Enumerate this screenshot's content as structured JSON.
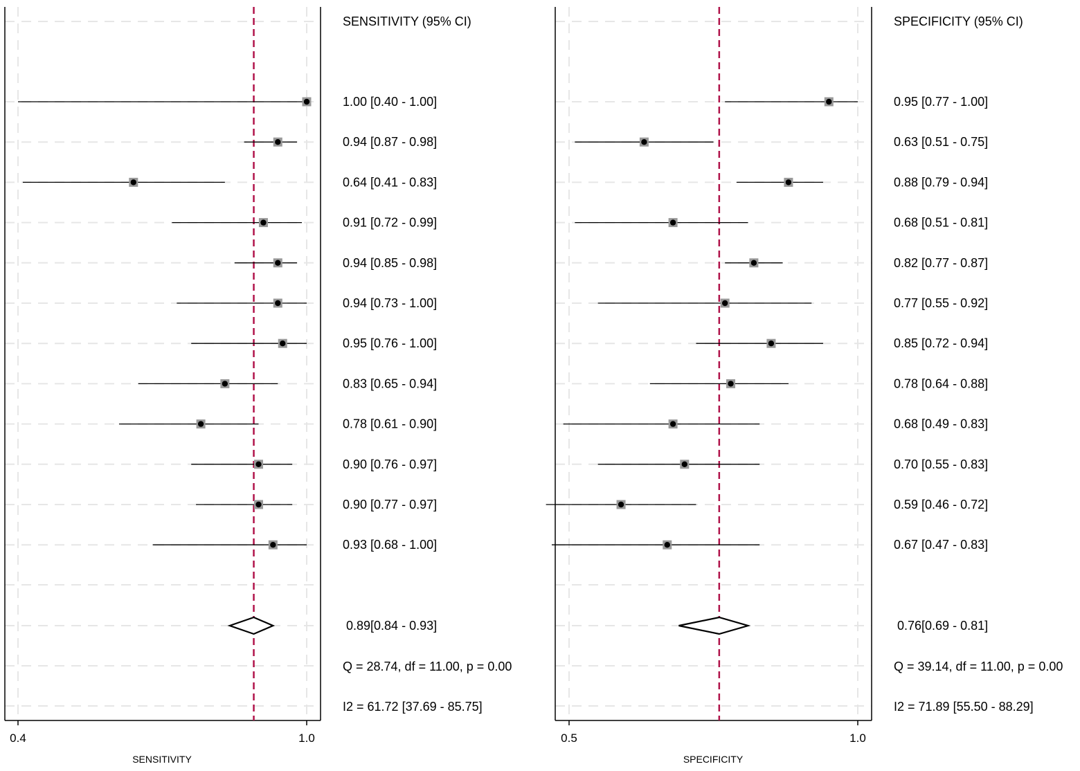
{
  "chart_data": [
    {
      "type": "forest",
      "title": "SENSITIVITY (95% CI)",
      "xlabel": "SENSITIVITY",
      "xlim": [
        0.4,
        1.0
      ],
      "xticks": [
        "0.4",
        "1.0"
      ],
      "pooled_reference": 0.89,
      "studies": [
        {
          "estimate": 1.0,
          "lower": 0.4,
          "upper": 1.0,
          "label": "1.00 [0.40 - 1.00]"
        },
        {
          "estimate": 0.94,
          "lower": 0.87,
          "upper": 0.98,
          "label": "0.94 [0.87 - 0.98]"
        },
        {
          "estimate": 0.64,
          "lower": 0.41,
          "upper": 0.83,
          "label": "0.64 [0.41 - 0.83]"
        },
        {
          "estimate": 0.91,
          "lower": 0.72,
          "upper": 0.99,
          "label": "0.91 [0.72 - 0.99]"
        },
        {
          "estimate": 0.94,
          "lower": 0.85,
          "upper": 0.98,
          "label": "0.94 [0.85 - 0.98]"
        },
        {
          "estimate": 0.94,
          "lower": 0.73,
          "upper": 1.0,
          "label": "0.94 [0.73 - 1.00]"
        },
        {
          "estimate": 0.95,
          "lower": 0.76,
          "upper": 1.0,
          "label": "0.95 [0.76 - 1.00]"
        },
        {
          "estimate": 0.83,
          "lower": 0.65,
          "upper": 0.94,
          "label": "0.83 [0.65 - 0.94]"
        },
        {
          "estimate": 0.78,
          "lower": 0.61,
          "upper": 0.9,
          "label": "0.78 [0.61 - 0.90]"
        },
        {
          "estimate": 0.9,
          "lower": 0.76,
          "upper": 0.97,
          "label": "0.90 [0.76 - 0.97]"
        },
        {
          "estimate": 0.9,
          "lower": 0.77,
          "upper": 0.97,
          "label": "0.90 [0.77 - 0.97]"
        },
        {
          "estimate": 0.93,
          "lower": 0.68,
          "upper": 1.0,
          "label": "0.93 [0.68 - 1.00]"
        }
      ],
      "pooled": {
        "estimate": 0.89,
        "lower": 0.84,
        "upper": 0.93,
        "label": "0.89[0.84 - 0.93]"
      },
      "heterogeneity_q": "Q = 28.74, df = 11.00, p =  0.00",
      "heterogeneity_i2": "I2 = 61.72 [37.69 - 85.75]"
    },
    {
      "type": "forest",
      "title": "SPECIFICITY (95% CI)",
      "xlabel": "SPECIFICITY",
      "xlim": [
        0.5,
        1.0
      ],
      "xticks": [
        "0.5",
        "1.0"
      ],
      "pooled_reference": 0.76,
      "studies": [
        {
          "estimate": 0.95,
          "lower": 0.77,
          "upper": 1.0,
          "label": "0.95 [0.77 - 1.00]"
        },
        {
          "estimate": 0.63,
          "lower": 0.51,
          "upper": 0.75,
          "label": "0.63 [0.51 - 0.75]"
        },
        {
          "estimate": 0.88,
          "lower": 0.79,
          "upper": 0.94,
          "label": "0.88 [0.79 - 0.94]"
        },
        {
          "estimate": 0.68,
          "lower": 0.51,
          "upper": 0.81,
          "label": "0.68 [0.51 - 0.81]"
        },
        {
          "estimate": 0.82,
          "lower": 0.77,
          "upper": 0.87,
          "label": "0.82 [0.77 - 0.87]"
        },
        {
          "estimate": 0.77,
          "lower": 0.55,
          "upper": 0.92,
          "label": "0.77 [0.55 - 0.92]"
        },
        {
          "estimate": 0.85,
          "lower": 0.72,
          "upper": 0.94,
          "label": "0.85 [0.72 - 0.94]"
        },
        {
          "estimate": 0.78,
          "lower": 0.64,
          "upper": 0.88,
          "label": "0.78 [0.64 - 0.88]"
        },
        {
          "estimate": 0.68,
          "lower": 0.49,
          "upper": 0.83,
          "label": "0.68 [0.49 - 0.83]"
        },
        {
          "estimate": 0.7,
          "lower": 0.55,
          "upper": 0.83,
          "label": "0.70 [0.55 - 0.83]"
        },
        {
          "estimate": 0.59,
          "lower": 0.46,
          "upper": 0.72,
          "label": "0.59 [0.46 - 0.72]"
        },
        {
          "estimate": 0.67,
          "lower": 0.47,
          "upper": 0.83,
          "label": "0.67 [0.47 - 0.83]"
        }
      ],
      "pooled": {
        "estimate": 0.76,
        "lower": 0.69,
        "upper": 0.81,
        "label": "0.76[0.69 - 0.81]"
      },
      "heterogeneity_q": "Q = 39.14, df = 11.00, p =  0.00",
      "heterogeneity_i2": "I2 = 71.89 [55.50 - 88.29]"
    }
  ],
  "colors": {
    "reference_line": "#b0134a",
    "marker_fill": "#999999",
    "point": "#000000",
    "grid": "#e6e6e6",
    "axis": "#000000"
  }
}
